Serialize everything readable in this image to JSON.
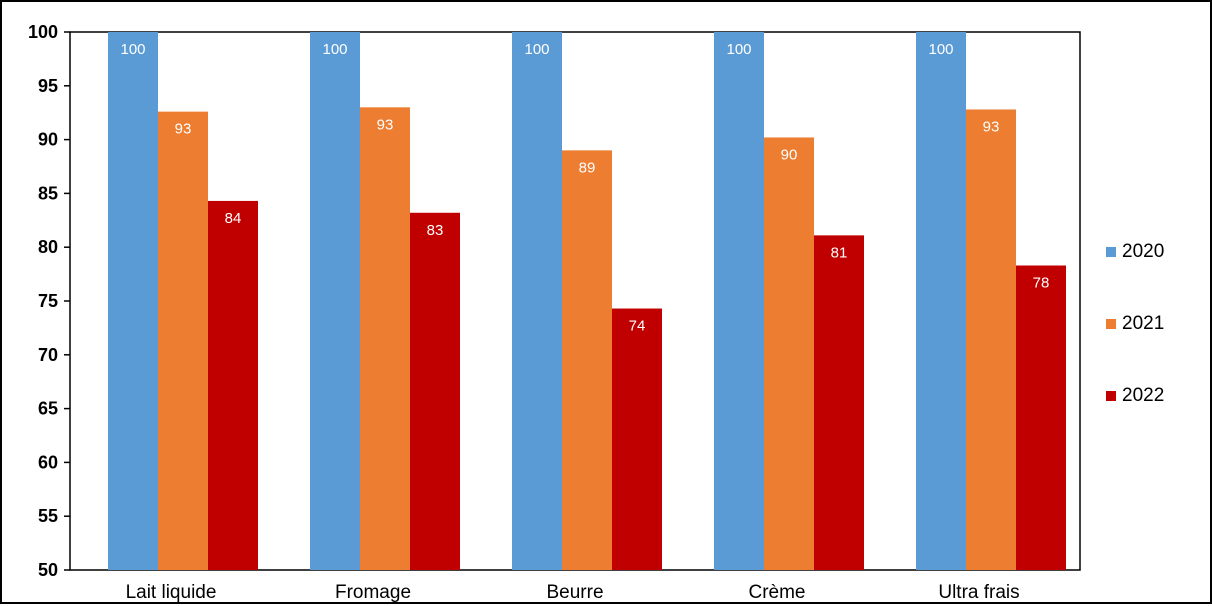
{
  "chart_data": {
    "type": "bar",
    "categories": [
      "Lait liquide",
      "Fromage",
      "Beurre",
      "Crème",
      "Ultra frais"
    ],
    "series": [
      {
        "name": "2020",
        "color": "#5B9BD5",
        "values": [
          100,
          100,
          100,
          100,
          100
        ],
        "labels": [
          "100",
          "100",
          "100",
          "100",
          "100"
        ]
      },
      {
        "name": "2021",
        "color": "#ED7D31",
        "values": [
          92.6,
          93.0,
          89.0,
          90.2,
          92.8
        ],
        "labels": [
          "93",
          "93",
          "89",
          "90",
          "93"
        ]
      },
      {
        "name": "2022",
        "color": "#C00000",
        "values": [
          84.3,
          83.2,
          74.3,
          81.1,
          78.3
        ],
        "labels": [
          "84",
          "83",
          "74",
          "81",
          "78"
        ]
      }
    ],
    "yticks": [
      "50",
      "55",
      "60",
      "65",
      "70",
      "75",
      "80",
      "85",
      "90",
      "95",
      "100"
    ],
    "ylim": [
      50,
      100
    ],
    "grid": false,
    "legend_position": "right"
  }
}
